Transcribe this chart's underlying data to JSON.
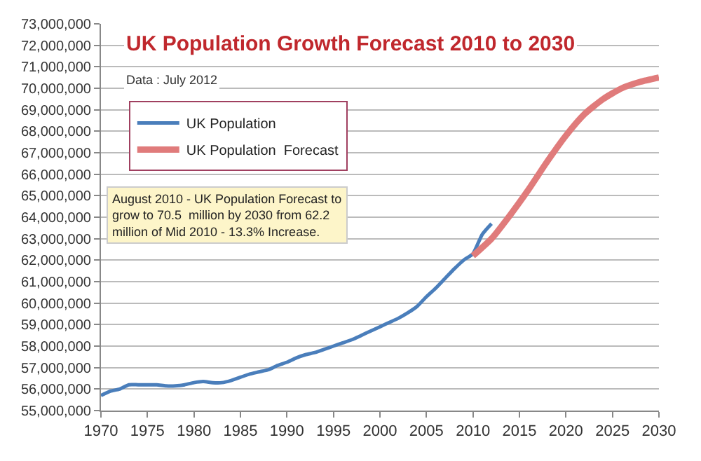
{
  "chart_data": {
    "type": "line",
    "title": "UK Population Growth Forecast 2010 to 2030",
    "subtitle": "Data : July 2012",
    "annotations": [
      "August 2010 - UK Population Forecast to grow to 70.5  million by 2030 from 62.2 million of Mid 2010 - 13.3% Increase."
    ],
    "series": [
      {
        "name": "UK Population",
        "color": "#4a7ebb",
        "x": [
          1970,
          1971,
          1972,
          1973,
          1974,
          1975,
          1976,
          1977,
          1978,
          1979,
          1980,
          1981,
          1982,
          1983,
          1984,
          1985,
          1986,
          1987,
          1988,
          1989,
          1990,
          1991,
          1992,
          1993,
          1994,
          1995,
          1996,
          1997,
          1998,
          1999,
          2000,
          2001,
          2002,
          2003,
          2004,
          2005,
          2006,
          2007,
          2008,
          2009,
          2010,
          2011,
          2012
        ],
        "values": [
          55700000,
          55900000,
          56000000,
          56200000,
          56200000,
          56200000,
          56200000,
          56150000,
          56150000,
          56200000,
          56300000,
          56350000,
          56300000,
          56300000,
          56400000,
          56550000,
          56700000,
          56800000,
          56900000,
          57100000,
          57250000,
          57450000,
          57600000,
          57700000,
          57850000,
          58000000,
          58150000,
          58300000,
          58500000,
          58700000,
          58900000,
          59100000,
          59300000,
          59550000,
          59850000,
          60300000,
          60700000,
          61150000,
          61600000,
          62000000,
          62300000,
          63200000,
          63700000
        ]
      },
      {
        "name": "UK Population  Forecast",
        "color": "#e07b7b",
        "x": [
          2010,
          2012,
          2014,
          2016,
          2018,
          2020,
          2022,
          2024,
          2026,
          2028,
          2030
        ],
        "values": [
          62200000,
          63000000,
          64100000,
          65300000,
          66600000,
          67800000,
          68800000,
          69500000,
          70000000,
          70300000,
          70500000
        ]
      }
    ],
    "xlim": [
      1970,
      2030
    ],
    "xticks": [
      1970,
      1975,
      1980,
      1985,
      1990,
      1995,
      2000,
      2005,
      2010,
      2015,
      2020,
      2025,
      2030
    ],
    "ylim": [
      55000000,
      73000000
    ],
    "yticks": [
      {
        "value": 55000000,
        "label": "55,000,000"
      },
      {
        "value": 56000000,
        "label": "56,000,000"
      },
      {
        "value": 57000000,
        "label": "57,000,000"
      },
      {
        "value": 58000000,
        "label": "58,000,000"
      },
      {
        "value": 59000000,
        "label": "59,000,000"
      },
      {
        "value": 60000000,
        "label": "60,000,000"
      },
      {
        "value": 61000000,
        "label": "61,000,000"
      },
      {
        "value": 62000000,
        "label": "62,000,000"
      },
      {
        "value": 63000000,
        "label": "63,000,000"
      },
      {
        "value": 64000000,
        "label": "64,000,000"
      },
      {
        "value": 65000000,
        "label": "65,000,000"
      },
      {
        "value": 66000000,
        "label": "66,000,000"
      },
      {
        "value": 67000000,
        "label": "67,000,000"
      },
      {
        "value": 68000000,
        "label": "68,000,000"
      },
      {
        "value": 69000000,
        "label": "69,000,000"
      },
      {
        "value": 70000000,
        "label": "70,000,000"
      },
      {
        "value": 71000000,
        "label": "71,000,000"
      },
      {
        "value": 72000000,
        "label": "72,000,000"
      },
      {
        "value": 73000000,
        "label": "73,000,000"
      }
    ],
    "grid": "y",
    "legend": "top left",
    "line_style": "solid",
    "marker": "none"
  }
}
